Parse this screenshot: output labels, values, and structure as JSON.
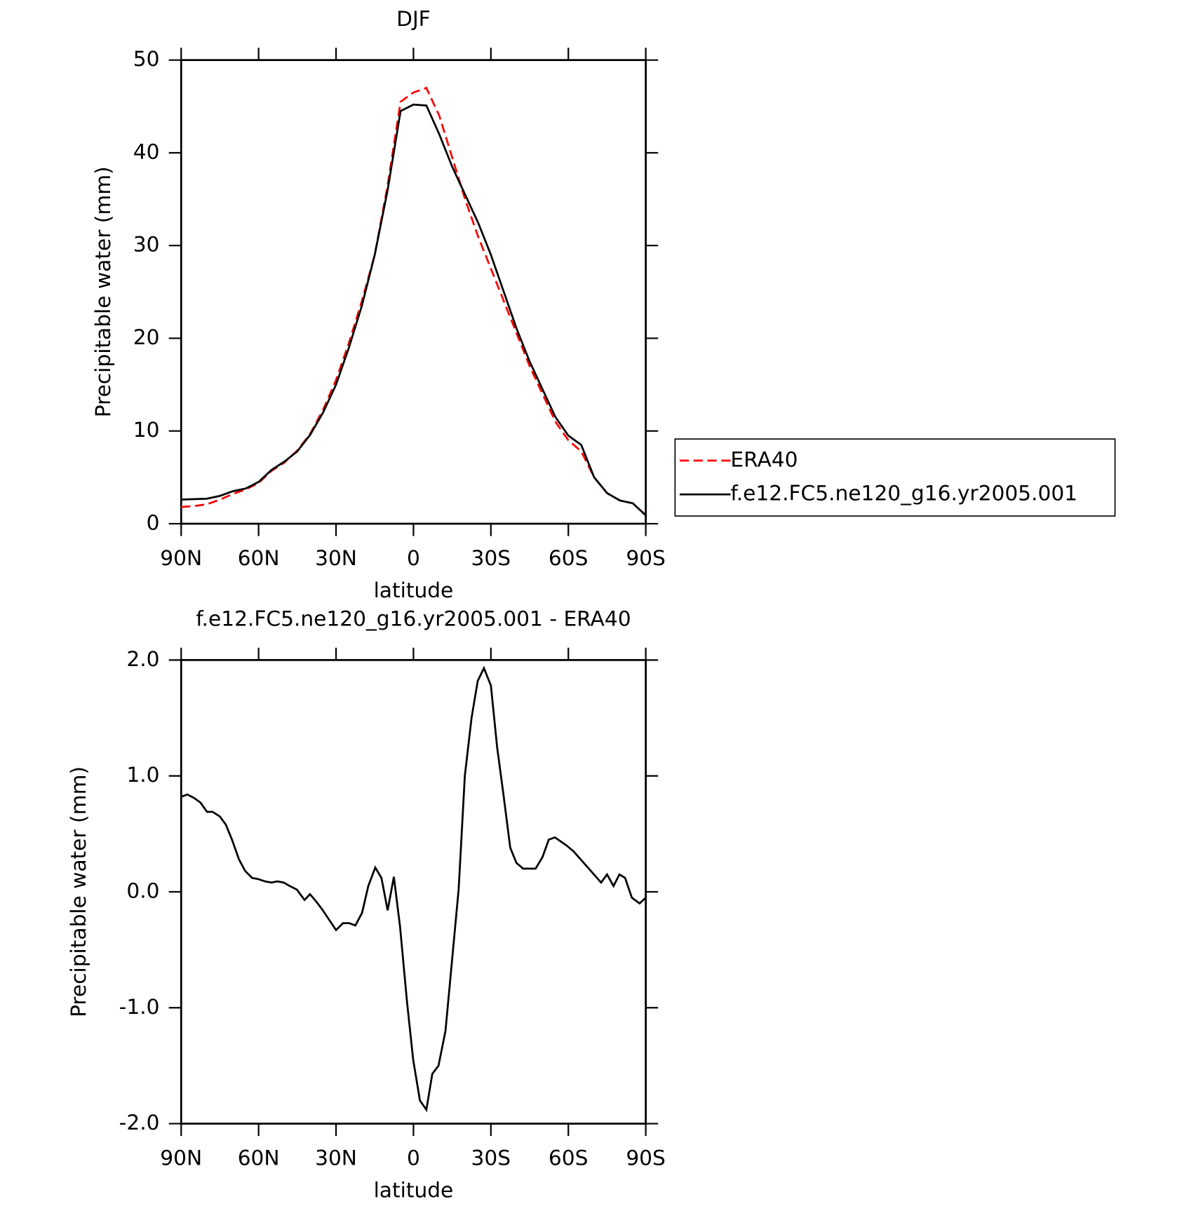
{
  "chart_data": [
    {
      "type": "line",
      "title": "DJF",
      "x_label": "latitude",
      "y_label": "Precipitable water (mm)",
      "x": [
        90,
        85,
        80,
        75,
        70,
        65,
        60,
        55,
        50,
        45,
        40,
        35,
        30,
        25,
        20,
        15,
        10,
        5,
        0,
        -5,
        -10,
        -15,
        -20,
        -25,
        -30,
        -35,
        -40,
        -45,
        -50,
        -55,
        -60,
        -65,
        -70,
        -75,
        -80,
        -85,
        -90
      ],
      "series": [
        {
          "name": "ERA40",
          "color": "#ff0000",
          "line_style": "dashed",
          "values": [
            1.8,
            1.9,
            2.1,
            2.6,
            3.2,
            3.7,
            4.4,
            5.7,
            6.6,
            7.9,
            9.7,
            12.3,
            15.5,
            19.5,
            24,
            29,
            36.5,
            45.5,
            46.5,
            47,
            44,
            39.5,
            35,
            31,
            27.5,
            24,
            20.5,
            17,
            14,
            11,
            9,
            7.8,
            5,
            3.3,
            2.5,
            2.2,
            0.9
          ]
        },
        {
          "name": "f.e12.FC5.ne120_g16.yr2005.001",
          "color": "#000000",
          "line_style": "solid",
          "values": [
            2.6,
            2.65,
            2.7,
            3.0,
            3.5,
            3.8,
            4.5,
            5.8,
            6.7,
            7.8,
            9.6,
            12,
            15,
            19,
            23.5,
            29,
            36,
            44.5,
            45.2,
            45.1,
            42,
            38.5,
            35.5,
            32.5,
            29,
            25,
            21,
            17.5,
            14.5,
            11.5,
            9.5,
            8.5,
            5,
            3.3,
            2.5,
            2.2,
            0.9
          ]
        }
      ],
      "xlim": [
        90,
        -90
      ],
      "xticks": [
        {
          "value": 90,
          "label": "90N"
        },
        {
          "value": 60,
          "label": "60N"
        },
        {
          "value": 30,
          "label": "30N"
        },
        0,
        {
          "value": -30,
          "label": "30S"
        },
        {
          "value": -60,
          "label": "60S"
        },
        {
          "value": -90,
          "label": "90S"
        }
      ],
      "ylim": [
        0,
        50
      ],
      "yticks": [
        0,
        10,
        20,
        30,
        40,
        50
      ],
      "legend": "right"
    },
    {
      "type": "line",
      "title": "f.e12.FC5.ne120_g16.yr2005.001 - ERA40",
      "x_label": "latitude",
      "y_label": "Precipitable water (mm)",
      "x": [
        90,
        87.6,
        85,
        82.5,
        80,
        77.8,
        75,
        72.7,
        70.3,
        67.6,
        65.2,
        62.5,
        60.1,
        57.5,
        55,
        52.7,
        50.3,
        47.9,
        45.2,
        42.2,
        40.1,
        37.8,
        35.4,
        30,
        27.3,
        24.9,
        22.5,
        19.9,
        17.5,
        14.8,
        12.4,
        10,
        7.6,
        5.2,
        2.5,
        0.1,
        -2.5,
        -5,
        -7.3,
        -9.7,
        -12.4,
        -17.5,
        -19.9,
        -22.5,
        -24.9,
        -27.3,
        -30,
        -32.4,
        -34.8,
        -37.5,
        -39.9,
        -42.5,
        -47.3,
        -50,
        -52.4,
        -54.8,
        -59.3,
        -62,
        -72.7,
        -75,
        -77.5,
        -79.8,
        -82,
        -84.6,
        -87.6,
        -90
      ],
      "series": [
        {
          "name": "f.e12.FC5.ne120_g16.yr2005.001 - ERA40",
          "color": "#000000",
          "line_style": "solid",
          "values": [
            0.82,
            0.84,
            0.81,
            0.77,
            0.69,
            0.69,
            0.65,
            0.58,
            0.45,
            0.28,
            0.18,
            0.12,
            0.11,
            0.09,
            0.08,
            0.09,
            0.08,
            0.05,
            0.02,
            -0.07,
            -0.02,
            -0.08,
            -0.15,
            -0.33,
            -0.27,
            -0.27,
            -0.29,
            -0.18,
            0.05,
            0.21,
            0.12,
            -0.16,
            0.13,
            -0.3,
            -0.95,
            -1.45,
            -1.8,
            -1.88,
            -1.57,
            -1.5,
            -1.2,
            0.02,
            1.0,
            1.5,
            1.82,
            1.93,
            1.78,
            1.25,
            0.85,
            0.38,
            0.25,
            0.2,
            0.2,
            0.3,
            0.45,
            0.47,
            0.4,
            0.35,
            0.08,
            0.15,
            0.05,
            0.15,
            0.12,
            -0.05,
            -0.1,
            -0.05
          ]
        }
      ],
      "xlim": [
        90,
        -90
      ],
      "xticks": [
        {
          "value": 90,
          "label": "90N"
        },
        {
          "value": 60,
          "label": "60N"
        },
        {
          "value": 30,
          "label": "30N"
        },
        0,
        {
          "value": -30,
          "label": "30S"
        },
        {
          "value": -60,
          "label": "60S"
        },
        {
          "value": -90,
          "label": "90S"
        }
      ],
      "ylim": [
        -2,
        2
      ],
      "yticks": [
        {
          "value": -2,
          "label": "-2.0"
        },
        {
          "value": -1,
          "label": "-1.0"
        },
        {
          "value": 0,
          "label": "0.0"
        },
        {
          "value": 1,
          "label": "1.0"
        },
        {
          "value": 2,
          "label": "2.0"
        }
      ]
    }
  ]
}
